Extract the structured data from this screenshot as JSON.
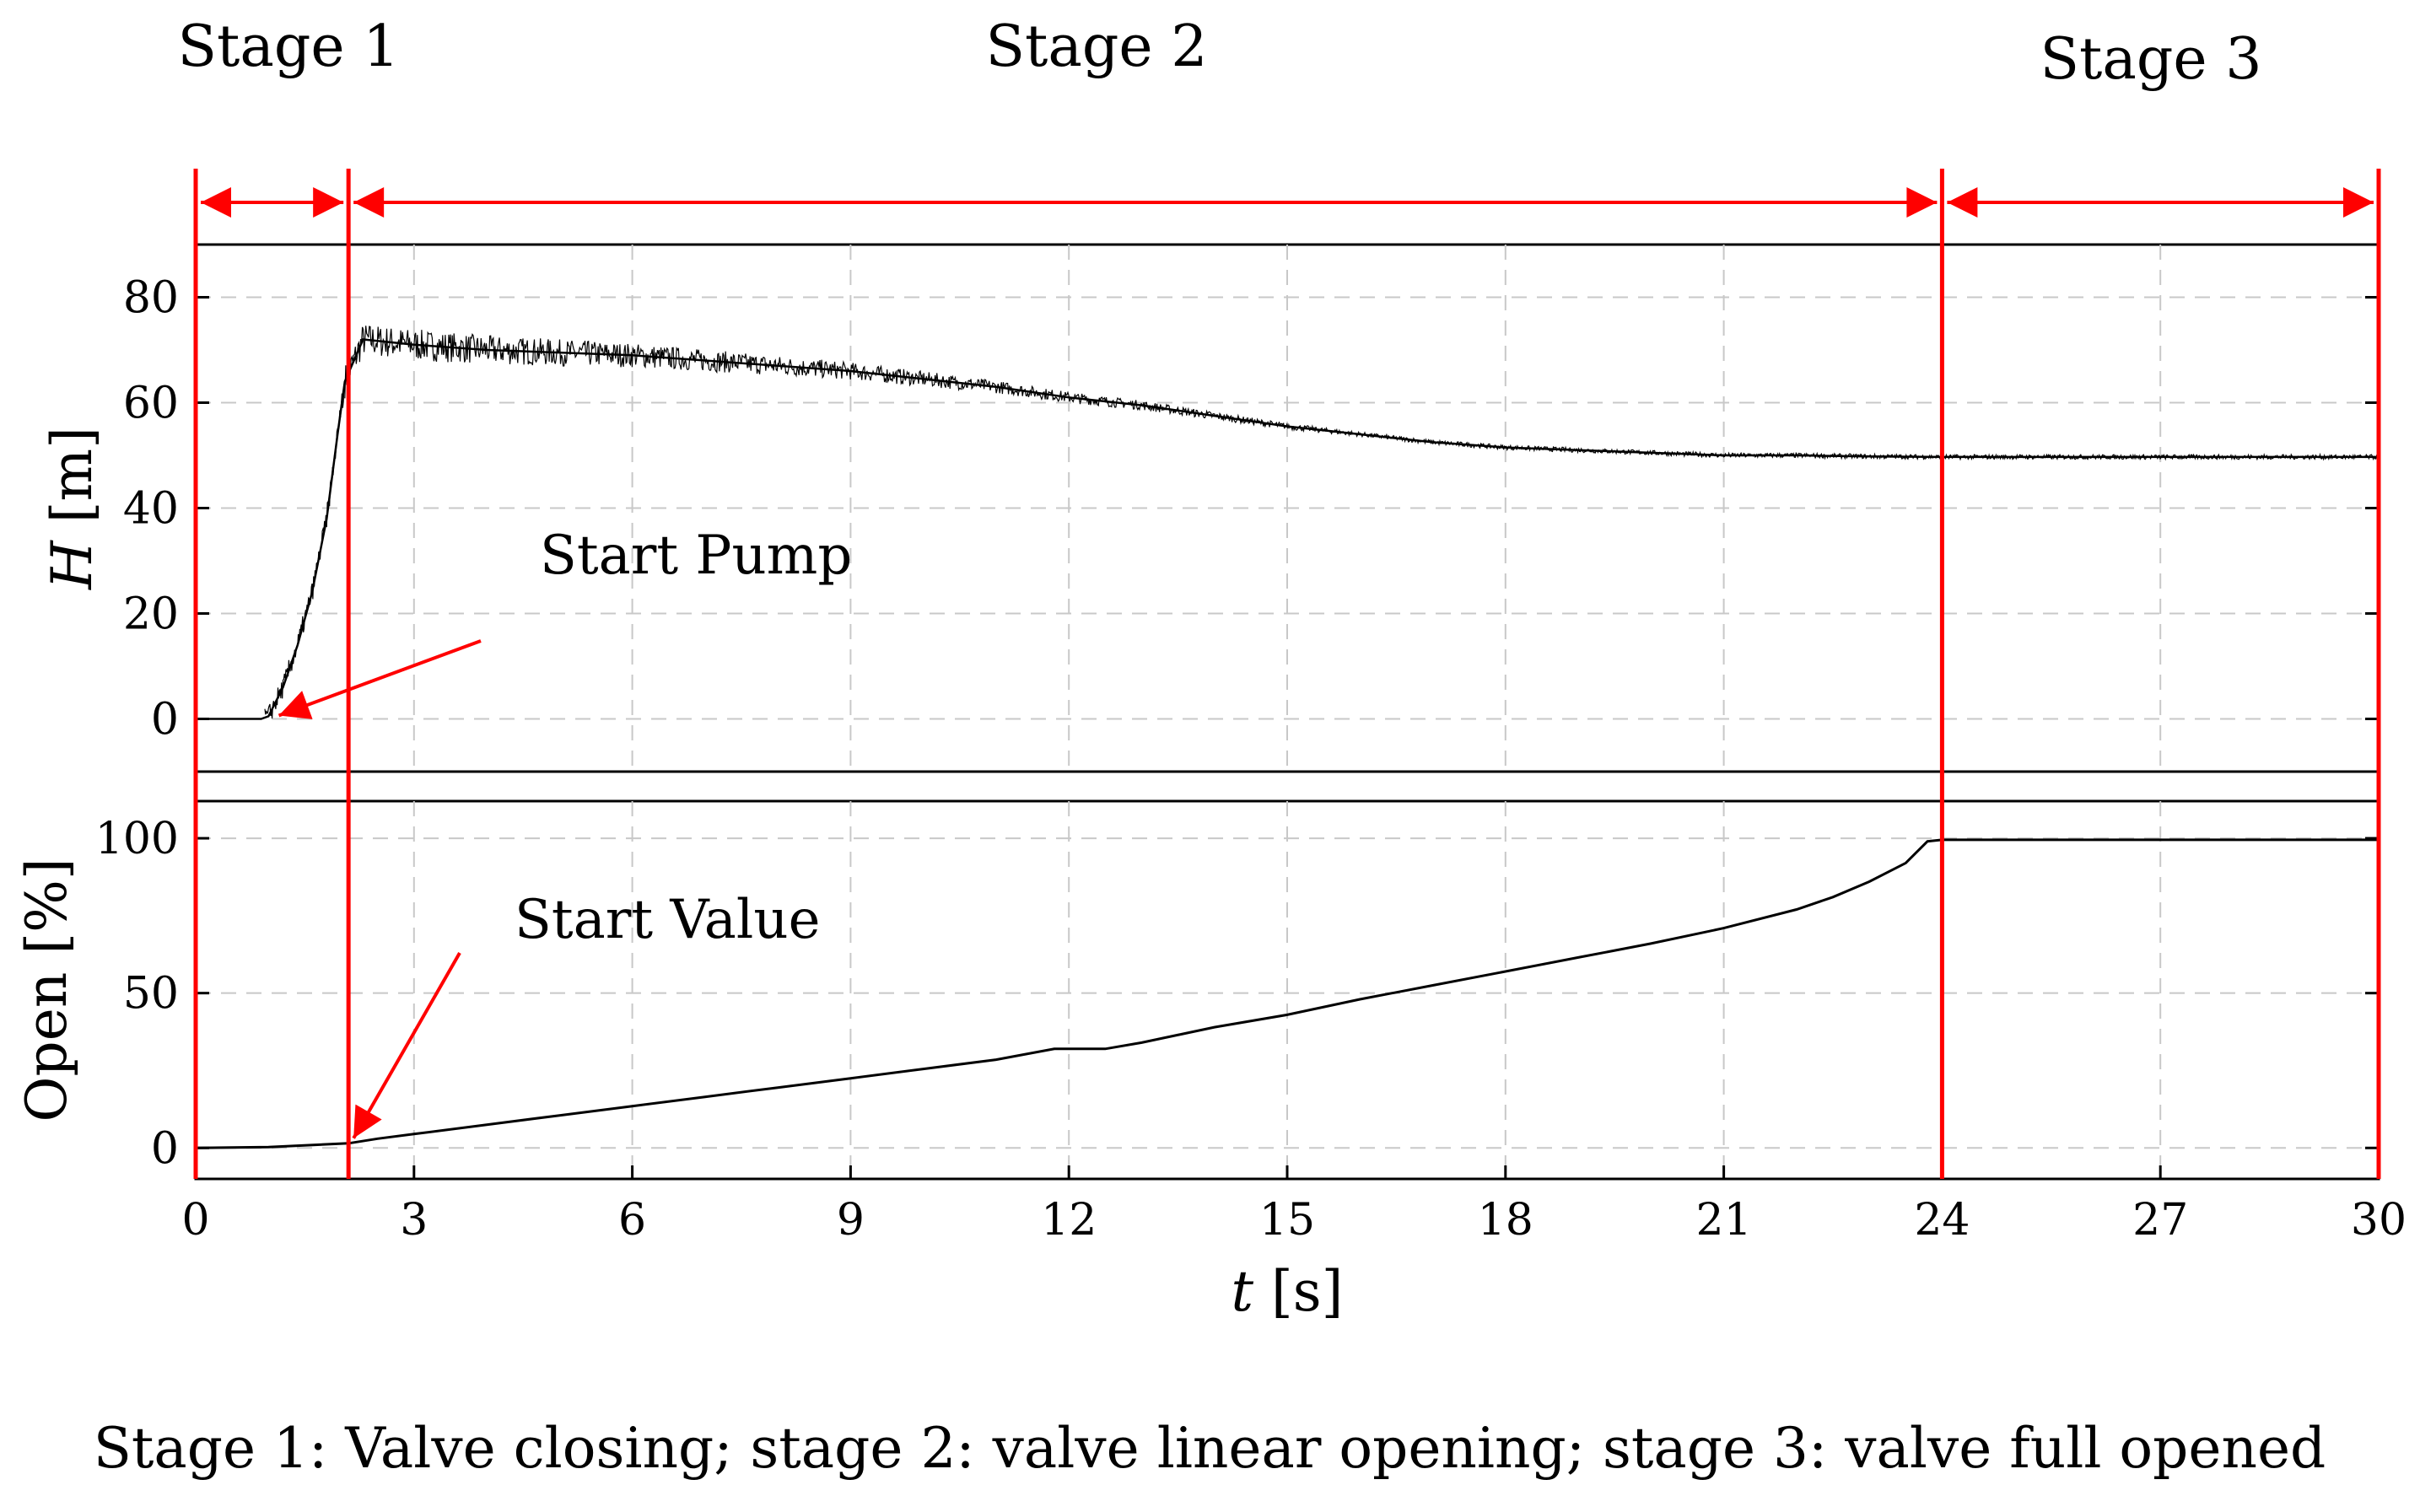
{
  "caption": "Stage 1: Valve closing; stage 2: valve linear opening; stage 3: valve full opened",
  "colors": {
    "accent": "#ff0000",
    "line": "#000000",
    "grid": "#c8c8c8"
  },
  "chart_data": [
    {
      "type": "line",
      "panel": "top",
      "title": "",
      "xlabel": "t [s]",
      "ylabel_italic": "H",
      "ylabel_unit": "[m]",
      "xlim": [
        0,
        30
      ],
      "ylim": [
        -10,
        90
      ],
      "yticks": [
        0,
        20,
        40,
        60,
        80
      ],
      "grid": true,
      "series": [
        {
          "name": "H",
          "x": [
            0,
            0.5,
            0.9,
            1.0,
            1.2,
            1.4,
            1.6,
            1.8,
            1.95,
            2.05,
            2.3,
            3,
            4,
            5,
            6,
            7,
            8,
            9,
            10,
            11,
            12,
            13,
            14,
            15,
            16,
            17,
            18,
            19,
            20,
            21,
            22,
            23,
            24,
            25,
            26,
            27,
            28,
            29,
            30
          ],
          "y": [
            0,
            0,
            0,
            0.5,
            6,
            14,
            24,
            38,
            54,
            64,
            72,
            71,
            70,
            69.5,
            69,
            68,
            67,
            66,
            64.5,
            63,
            61,
            59.5,
            57.5,
            55.5,
            54,
            52.5,
            51.5,
            51,
            50.5,
            50,
            50,
            49.8,
            49.7,
            49.7,
            49.7,
            49.7,
            49.7,
            49.7,
            49.7
          ]
        }
      ],
      "annotations": [
        {
          "text": "Start Pump",
          "x": 1.05,
          "y": 0
        }
      ]
    },
    {
      "type": "line",
      "panel": "bottom",
      "title": "",
      "xlabel": "t [s]",
      "ylabel": "Open [%]",
      "xlim": [
        0,
        30
      ],
      "ylim": [
        -10,
        112
      ],
      "yticks": [
        0,
        50,
        100
      ],
      "xticks": [
        0,
        3,
        6,
        9,
        12,
        15,
        18,
        21,
        24,
        27,
        30
      ],
      "grid": true,
      "series": [
        {
          "name": "Open",
          "x": [
            0,
            1,
            2.1,
            2.5,
            3,
            4,
            5,
            6,
            7,
            8,
            9,
            10,
            11,
            11.8,
            12.5,
            13,
            14,
            15,
            16,
            17,
            18,
            19,
            20,
            21,
            22,
            22.5,
            23,
            23.5,
            23.8,
            24,
            25,
            26,
            27,
            28,
            29,
            30
          ],
          "y": [
            0,
            0.3,
            1.5,
            3,
            4.5,
            7.5,
            10.5,
            13.5,
            16.5,
            19.5,
            22.5,
            25.5,
            28.5,
            32,
            32,
            34,
            39,
            43,
            48,
            52.5,
            57,
            61.5,
            66,
            71,
            77,
            81,
            86,
            92,
            99,
            99.5,
            99.5,
            99.5,
            99.5,
            99.5,
            99.5,
            99.5
          ]
        }
      ],
      "annotations": [
        {
          "text": "Start Value",
          "x": 2.1,
          "y": 1.5
        }
      ]
    }
  ],
  "stages": [
    {
      "label": "Stage 1",
      "start": 0,
      "end": 2.1
    },
    {
      "label": "Stage 2",
      "start": 2.1,
      "end": 24
    },
    {
      "label": "Stage 3",
      "start": 24,
      "end": 30
    }
  ]
}
